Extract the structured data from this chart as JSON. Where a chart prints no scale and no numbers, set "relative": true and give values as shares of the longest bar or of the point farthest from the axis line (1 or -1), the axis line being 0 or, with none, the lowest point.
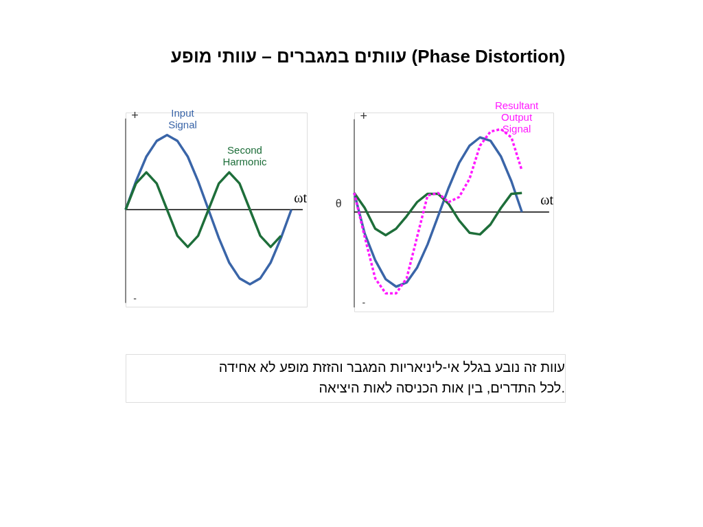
{
  "chart_data": [
    {
      "type": "line",
      "relative": true,
      "title": "עוותים במגברים – עוותי מופע (Phase Distortion)",
      "xlabel": "ωt",
      "annotations": [
        "+",
        "-"
      ],
      "line_style": "solid",
      "categories": [
        null,
        null,
        null,
        null,
        null,
        null,
        null,
        null,
        null,
        null,
        null,
        null,
        null,
        null,
        null,
        null,
        null
      ],
      "series": [
        {
          "name": "Input Signal",
          "color": "#3a65a8",
          "values": [
            0,
            0.38,
            0.71,
            0.92,
            1,
            0.92,
            0.71,
            0.38,
            0,
            -0.38,
            -0.71,
            -0.92,
            -1,
            -0.92,
            -0.71,
            -0.38,
            0
          ]
        },
        {
          "name": "Second Harmonic",
          "color": "#1e6e3a",
          "values": [
            0,
            0.35,
            0.5,
            0.35,
            0,
            -0.35,
            -0.5,
            -0.35,
            0,
            0.35,
            0.5,
            0.35,
            0,
            -0.35,
            -0.5,
            -0.35,
            null
          ]
        }
      ]
    },
    {
      "type": "line",
      "relative": true,
      "xlabel": "ωt",
      "annotations": [
        "+",
        "-",
        "θ",
        "עוות זה נובע בגלל אי-ליניאריות המגבר והזזת מופע לא אחידה לכל התדרים, בין אות הכניסה לאות היציאה."
      ],
      "line_style": "solid",
      "categories": [
        null,
        null,
        null,
        null,
        null,
        null,
        null,
        null,
        null,
        null,
        null,
        null,
        null,
        null,
        null,
        null,
        null
      ],
      "series": [
        {
          "color": "#3a65a8",
          "values": [
            0.23,
            -0.26,
            -0.58,
            -0.81,
            -0.9,
            -0.85,
            -0.67,
            -0.39,
            -0.05,
            0.29,
            0.59,
            0.8,
            0.9,
            0.86,
            0.67,
            0.37,
            0
          ]
        },
        {
          "color": "#1e6e3a",
          "values": [
            0.23,
            0.05,
            -0.2,
            -0.28,
            -0.2,
            -0.05,
            0.12,
            0.22,
            0.22,
            0.1,
            -0.1,
            -0.25,
            -0.27,
            -0.15,
            0.05,
            0.22,
            0.23
          ]
        },
        {
          "name": "Resultant Output Signal",
          "color": "#ff1aff",
          "line_style": "dashed",
          "values": [
            0.23,
            -0.3,
            -0.8,
            -0.98,
            -0.98,
            -0.8,
            -0.3,
            0.2,
            0.23,
            0.12,
            0.18,
            0.4,
            0.8,
            0.97,
            1,
            0.9,
            0.5
          ]
        }
      ]
    }
  ]
}
